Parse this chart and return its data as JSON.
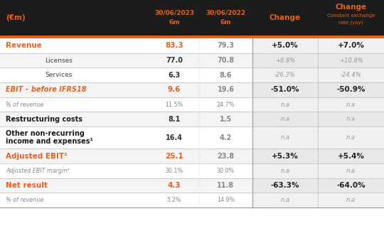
{
  "title_col0": "(€m)",
  "col1_header_line1": "30/06/2023",
  "col1_header_line2": "6m",
  "col2_header_line1": "30/06/2022",
  "col2_header_line2": "6m",
  "col3_header": "Change",
  "col4_header_line1": "Change",
  "col4_header_line2": "Constant exchange",
  "col4_header_line3": "rate (yoy)",
  "orange": "#E8601C",
  "dark_bg": "#1C1C1C",
  "white": "#FFFFFF",
  "light_gray": "#F2F2F2",
  "separator_color": "#CCCCCC",
  "change_bg": "#EEEEEE",
  "change_bg_alt": "#E8E8E8",
  "rows": [
    {
      "label": "Revenue",
      "label_style": "bold_orange",
      "indent": false,
      "v1": "83.3",
      "v2": "79.3",
      "v1_orange": true,
      "v2_gray": true,
      "c1": "+5.0%",
      "c2": "+7.0%",
      "change_bold": true,
      "row_bg": "white"
    },
    {
      "label": "Licenses",
      "label_style": "normal_right",
      "indent": true,
      "v1": "77.0",
      "v2": "70.8",
      "v1_orange": false,
      "v2_gray": true,
      "c1": "+8.8%",
      "c2": "+10.8%",
      "change_bold": false,
      "row_bg": "white"
    },
    {
      "label": "Services",
      "label_style": "normal_right",
      "indent": true,
      "v1": "6.3",
      "v2": "8.6",
      "v1_orange": false,
      "v2_gray": true,
      "c1": "-26.3%",
      "c2": "-24.4%",
      "change_bold": false,
      "row_bg": "white"
    },
    {
      "label": "EBIT – before IFRS18",
      "label_style": "italic_orange",
      "indent": false,
      "v1": "9.6",
      "v2": "19.6",
      "v1_orange": true,
      "v2_gray": true,
      "c1": "-51.0%",
      "c2": "-50.9%",
      "change_bold": true,
      "row_bg": "white"
    },
    {
      "label": "% of revenue",
      "label_style": "small_gray_italic",
      "indent": false,
      "v1": "11.5%",
      "v2": "24.7%",
      "v1_orange": false,
      "v2_gray": true,
      "c1": "n.a",
      "c2": "n.a",
      "change_bold": false,
      "row_bg": "white"
    },
    {
      "label": "Restructuring costs",
      "label_style": "bold_dark",
      "indent": false,
      "v1": "8.1",
      "v2": "1.5",
      "v1_orange": false,
      "v2_gray": true,
      "c1": "n.a",
      "c2": "n.a",
      "change_bold": false,
      "row_bg": "white"
    },
    {
      "label": "Other non-recurring\nincome and expenses¹",
      "label_style": "bold_dark",
      "indent": false,
      "v1": "16.4",
      "v2": "4.2",
      "v1_orange": false,
      "v2_gray": true,
      "c1": "n.a",
      "c2": "n.a",
      "change_bold": false,
      "row_bg": "white"
    },
    {
      "label": "Adjusted EBIT²",
      "label_style": "bold_orange",
      "indent": false,
      "v1": "25.1",
      "v2": "23.8",
      "v1_orange": true,
      "v2_gray": true,
      "c1": "+5.3%",
      "c2": "+5.4%",
      "change_bold": true,
      "row_bg": "white"
    },
    {
      "label": "Adjusted EBIT margin²",
      "label_style": "small_gray_italic",
      "indent": false,
      "v1": "30.1%",
      "v2": "30.0%",
      "v1_orange": false,
      "v2_gray": true,
      "c1": "n.a",
      "c2": "n.a",
      "change_bold": false,
      "row_bg": "white"
    },
    {
      "label": "Net result",
      "label_style": "bold_orange",
      "indent": false,
      "v1": "4.3",
      "v2": "11.8",
      "v1_orange": true,
      "v2_gray": true,
      "c1": "-63.3%",
      "c2": "-64.0%",
      "change_bold": true,
      "row_bg": "white"
    },
    {
      "label": "% of revenue",
      "label_style": "small_gray_italic",
      "indent": false,
      "v1": "5.2%",
      "v2": "14.9%",
      "v1_orange": false,
      "v2_gray": true,
      "c1": "n.a",
      "c2": "n.a",
      "change_bold": false,
      "row_bg": "white"
    }
  ]
}
